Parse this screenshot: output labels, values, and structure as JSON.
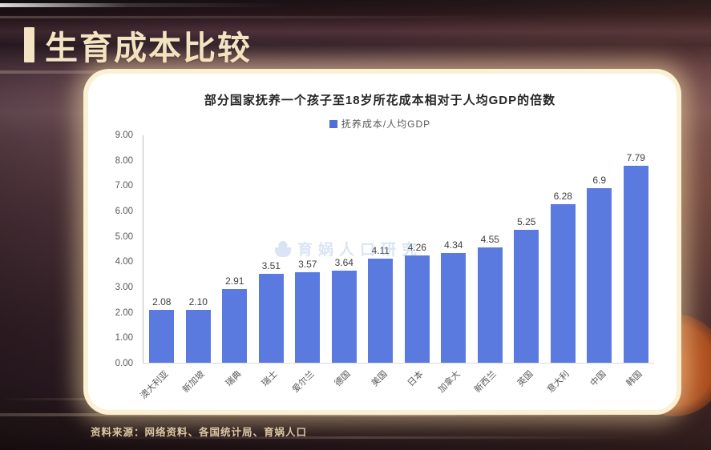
{
  "page": {
    "section_title": "生育成本比较",
    "source_note": "资料来源：网络资料、各国统计局、育娲人口",
    "watermark": "育娲人口研究"
  },
  "chart_data": {
    "type": "bar",
    "title": "部分国家抚养一个孩子至18岁所花成本相对于人均GDP的倍数",
    "legend": {
      "label": "抚养成本/人均GDP",
      "position": "top",
      "swatch_color": "#4f6fd8"
    },
    "categories": [
      "澳大利亚",
      "新加坡",
      "瑞典",
      "瑞士",
      "爱尔兰",
      "德国",
      "美国",
      "日本",
      "加拿大",
      "新西兰",
      "英国",
      "意大利",
      "中国",
      "韩国"
    ],
    "values": [
      2.08,
      2.1,
      2.91,
      3.51,
      3.57,
      3.64,
      4.11,
      4.26,
      4.34,
      4.55,
      5.25,
      6.28,
      6.9,
      7.79
    ],
    "value_labels": [
      "2.08",
      "2.10",
      "2.91",
      "3.51",
      "3.57",
      "3.64",
      "4.11",
      "4.26",
      "4.34",
      "4.55",
      "5.25",
      "6.28",
      "6.9",
      "7.79"
    ],
    "xlabel": "",
    "ylabel": "",
    "ylim": [
      0,
      9
    ],
    "ytick_step": 1,
    "ytick_labels": [
      "0.00",
      "1.00",
      "2.00",
      "3.00",
      "4.00",
      "5.00",
      "6.00",
      "7.00",
      "8.00",
      "9.00"
    ],
    "grid": false,
    "bar_color": "#5b7ae0"
  },
  "colors": {
    "accent_cream": "#f4e4c4",
    "card_glow": "#fcf0d4",
    "bar_blue": "#5b7ae0",
    "axis_text": "#595959",
    "background_maroon": "#3a242c",
    "sun_orange": "#b05320"
  }
}
